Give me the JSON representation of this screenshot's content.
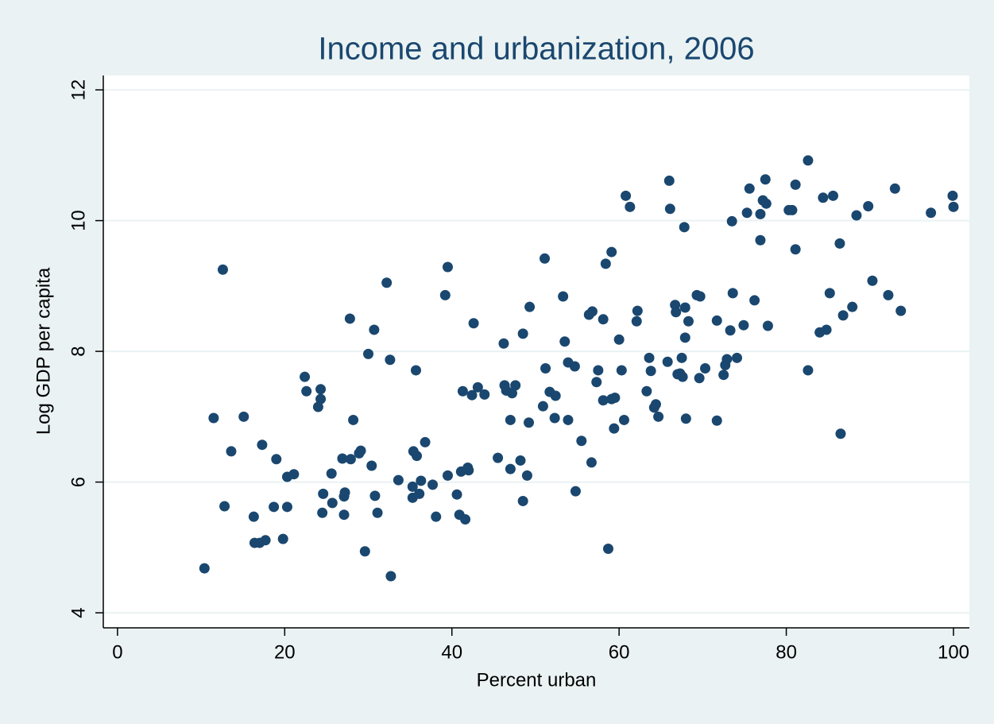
{
  "chart_data": {
    "type": "scatter",
    "title": "Income and urbanization, 2006",
    "x_label": "Percent urban",
    "y_label": "Log GDP per capita",
    "color": "#1a476f",
    "grid": true,
    "xlim": [
      -1.7,
      101.9
    ],
    "ylim": [
      3.77,
      12.22
    ],
    "xticks": [
      0,
      20,
      40,
      60,
      80,
      100
    ],
    "yticks": [
      4,
      6,
      8,
      10,
      12
    ],
    "x": [
      10.4,
      11.5,
      12.6,
      12.8,
      13.6,
      15.1,
      16.3,
      16.4,
      17.0,
      17.3,
      17.7,
      19.0,
      18.7,
      19.8,
      20.3,
      20.3,
      21.1,
      22.4,
      22.6,
      24.0,
      24.3,
      24.3,
      24.5,
      24.6,
      25.6,
      25.7,
      26.9,
      27.1,
      27.1,
      27.2,
      27.8,
      27.9,
      28.2,
      28.9,
      29.1,
      29.6,
      30.0,
      30.4,
      30.7,
      30.8,
      31.1,
      32.2,
      32.6,
      32.7,
      33.6,
      35.3,
      35.3,
      35.4,
      35.7,
      35.8,
      36.1,
      36.3,
      36.8,
      37.7,
      38.1,
      39.2,
      39.5,
      39.5,
      40.6,
      40.9,
      41.1,
      41.3,
      41.6,
      41.9,
      42.0,
      42.4,
      42.6,
      43.1,
      43.9,
      45.5,
      46.2,
      46.3,
      46.5,
      47.0,
      47.0,
      47.2,
      47.6,
      48.2,
      48.5,
      48.5,
      49.0,
      49.2,
      49.3,
      50.9,
      51.1,
      51.2,
      51.7,
      52.3,
      52.4,
      53.3,
      53.5,
      53.9,
      53.9,
      54.7,
      54.8,
      55.5,
      56.4,
      56.7,
      56.8,
      57.3,
      57.5,
      58.1,
      58.1,
      58.4,
      58.7,
      59.1,
      59.1,
      59.4,
      59.5,
      60.0,
      60.3,
      60.6,
      60.8,
      61.3,
      62.1,
      62.2,
      63.3,
      63.6,
      63.8,
      64.2,
      64.4,
      64.7,
      65.8,
      66.0,
      66.1,
      66.7,
      66.8,
      67.0,
      67.3,
      67.5,
      67.6,
      67.8,
      67.9,
      67.9,
      68.0,
      68.3,
      69.3,
      69.7,
      69.6,
      70.3,
      71.7,
      71.7,
      72.5,
      72.7,
      72.9,
      73.3,
      73.5,
      73.6,
      74.1,
      74.9,
      75.3,
      75.6,
      76.2,
      76.9,
      76.9,
      77.2,
      77.5,
      77.6,
      77.8,
      80.3,
      80.7,
      81.1,
      81.1,
      82.6,
      82.6,
      84.0,
      84.4,
      84.8,
      85.2,
      85.6,
      86.4,
      86.5,
      86.8,
      87.9,
      88.4,
      89.8,
      90.3,
      92.2,
      93.0,
      93.7,
      97.3,
      99.9,
      100.0
    ],
    "values": [
      4.68,
      6.98,
      9.25,
      5.63,
      6.47,
      7.0,
      5.47,
      5.07,
      5.07,
      6.57,
      5.11,
      6.35,
      5.62,
      5.13,
      6.08,
      5.62,
      6.12,
      7.61,
      7.39,
      7.15,
      7.42,
      7.27,
      5.53,
      5.82,
      6.13,
      5.68,
      6.36,
      5.78,
      5.5,
      5.84,
      8.5,
      6.35,
      6.95,
      6.44,
      6.48,
      4.94,
      7.96,
      6.25,
      8.33,
      5.79,
      5.53,
      9.05,
      7.87,
      4.56,
      6.03,
      5.93,
      5.76,
      6.47,
      7.71,
      6.4,
      5.82,
      6.02,
      6.61,
      5.96,
      5.47,
      8.86,
      9.29,
      6.1,
      5.81,
      5.5,
      6.16,
      7.39,
      5.43,
      6.22,
      6.18,
      7.33,
      8.43,
      7.45,
      7.34,
      6.37,
      8.12,
      7.48,
      7.4,
      6.95,
      6.2,
      7.36,
      7.48,
      6.33,
      5.71,
      8.27,
      6.1,
      6.91,
      8.68,
      7.16,
      9.42,
      7.74,
      7.38,
      6.98,
      7.32,
      8.84,
      8.15,
      6.95,
      7.83,
      7.77,
      5.86,
      6.63,
      8.56,
      6.3,
      8.61,
      7.53,
      7.71,
      8.49,
      7.25,
      9.34,
      4.98,
      9.52,
      7.27,
      6.82,
      7.29,
      8.18,
      7.71,
      6.95,
      10.38,
      10.21,
      8.46,
      8.62,
      7.39,
      7.9,
      7.7,
      7.14,
      7.19,
      7.0,
      7.84,
      10.61,
      10.18,
      8.71,
      8.6,
      7.65,
      7.66,
      7.9,
      7.61,
      9.9,
      8.67,
      8.21,
      6.97,
      8.46,
      8.86,
      8.84,
      7.59,
      7.74,
      6.94,
      8.47,
      7.64,
      7.79,
      7.88,
      8.32,
      9.99,
      8.89,
      7.9,
      8.4,
      10.12,
      10.49,
      8.78,
      9.7,
      10.1,
      10.31,
      10.63,
      10.26,
      8.39,
      10.16,
      10.16,
      10.55,
      9.56,
      7.71,
      10.92,
      8.29,
      10.35,
      8.33,
      8.89,
      10.38,
      9.65,
      6.74,
      8.55,
      8.68,
      10.08,
      10.22,
      9.08,
      8.86,
      10.49,
      8.62,
      10.12,
      10.38,
      10.21
    ]
  }
}
